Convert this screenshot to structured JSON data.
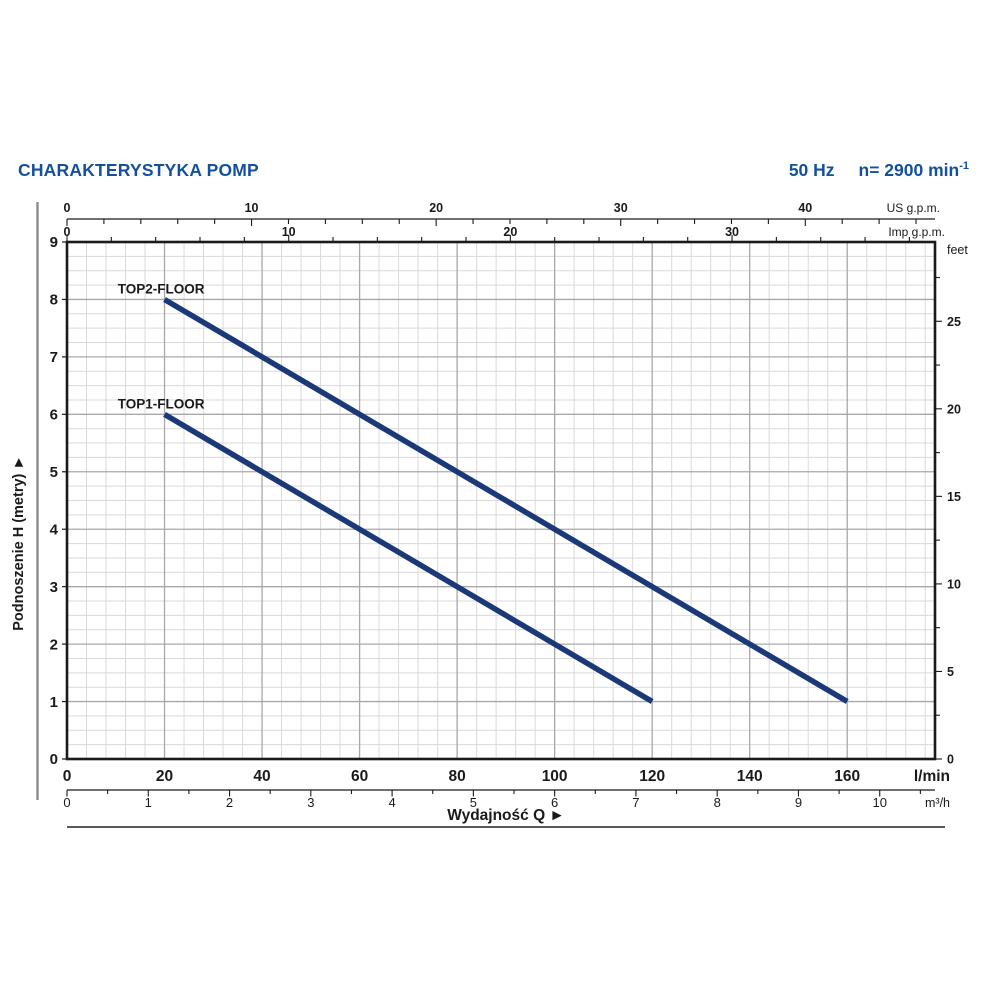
{
  "header": {
    "title": "CHARAKTERYSTYKA POMP",
    "frequency": "50 Hz",
    "speed": "n= 2900 min",
    "speed_exponent": "-1"
  },
  "chart_data": {
    "type": "line",
    "title": "CHARAKTERYSTYKA POMP",
    "xlabel": "Wydajność Q ►",
    "ylabel": "Podnoszenie H (metry) ►",
    "x_base_unit": "l/min",
    "y_base_unit": "metry",
    "xlim_lmin": [
      0,
      178
    ],
    "ylim_m": [
      0,
      9
    ],
    "grid": {
      "on": true,
      "x_minor_step_lmin": 4,
      "x_major_step_lmin": 20,
      "y_minor_step_m": 0.25,
      "y_major_step_m": 1
    },
    "axes": {
      "us_gpm": {
        "label": "US g.p.m.",
        "lmin_per_unit": 3.785,
        "tick_step": 2,
        "labels": [
          0,
          10,
          20,
          30,
          40
        ]
      },
      "imp_gpm": {
        "label": "Imp g.p.m.",
        "lmin_per_unit": 4.546,
        "tick_step": 2,
        "labels": [
          0,
          10,
          20,
          30
        ]
      },
      "lmin": {
        "label": "l/min",
        "lmin_per_unit": 1,
        "tick_step": 20,
        "labels": [
          0,
          20,
          40,
          60,
          80,
          100,
          120,
          140,
          160
        ]
      },
      "m3h": {
        "label": "m³/h",
        "lmin_per_unit": 16.6667,
        "tick_step": 0.5,
        "labels": [
          0,
          1,
          2,
          3,
          4,
          5,
          6,
          7,
          8,
          9,
          10
        ]
      },
      "metry": {
        "label": "Podnoszenie H (metry) ►",
        "m_per_unit": 1,
        "tick_step": 1,
        "labels": [
          0,
          1,
          2,
          3,
          4,
          5,
          6,
          7,
          8,
          9
        ]
      },
      "feet": {
        "label": "feet",
        "m_per_unit": 0.3048,
        "tick_step": 2.5,
        "labels": [
          0,
          5,
          10,
          15,
          20,
          25
        ]
      }
    },
    "series": [
      {
        "name": "TOP2-FLOOR",
        "points_lmin_m": [
          [
            20,
            8
          ],
          [
            160,
            1
          ]
        ],
        "label_pos_lmin_m": [
          19.3,
          8.1
        ]
      },
      {
        "name": "TOP1-FLOOR",
        "points_lmin_m": [
          [
            20,
            6
          ],
          [
            120,
            1
          ]
        ],
        "label_pos_lmin_m": [
          19.3,
          6.1
        ]
      }
    ],
    "bottom_label": "Wydajność Q ►",
    "colors": {
      "curve": "#1b3878",
      "title_blue": "#15509c",
      "axis_black": "#1a1a1a",
      "grid_minor": "#dadada",
      "grid_major": "#a8a8a8",
      "left_rule_gray": "#8a8a8a",
      "underline": "#222222"
    }
  }
}
